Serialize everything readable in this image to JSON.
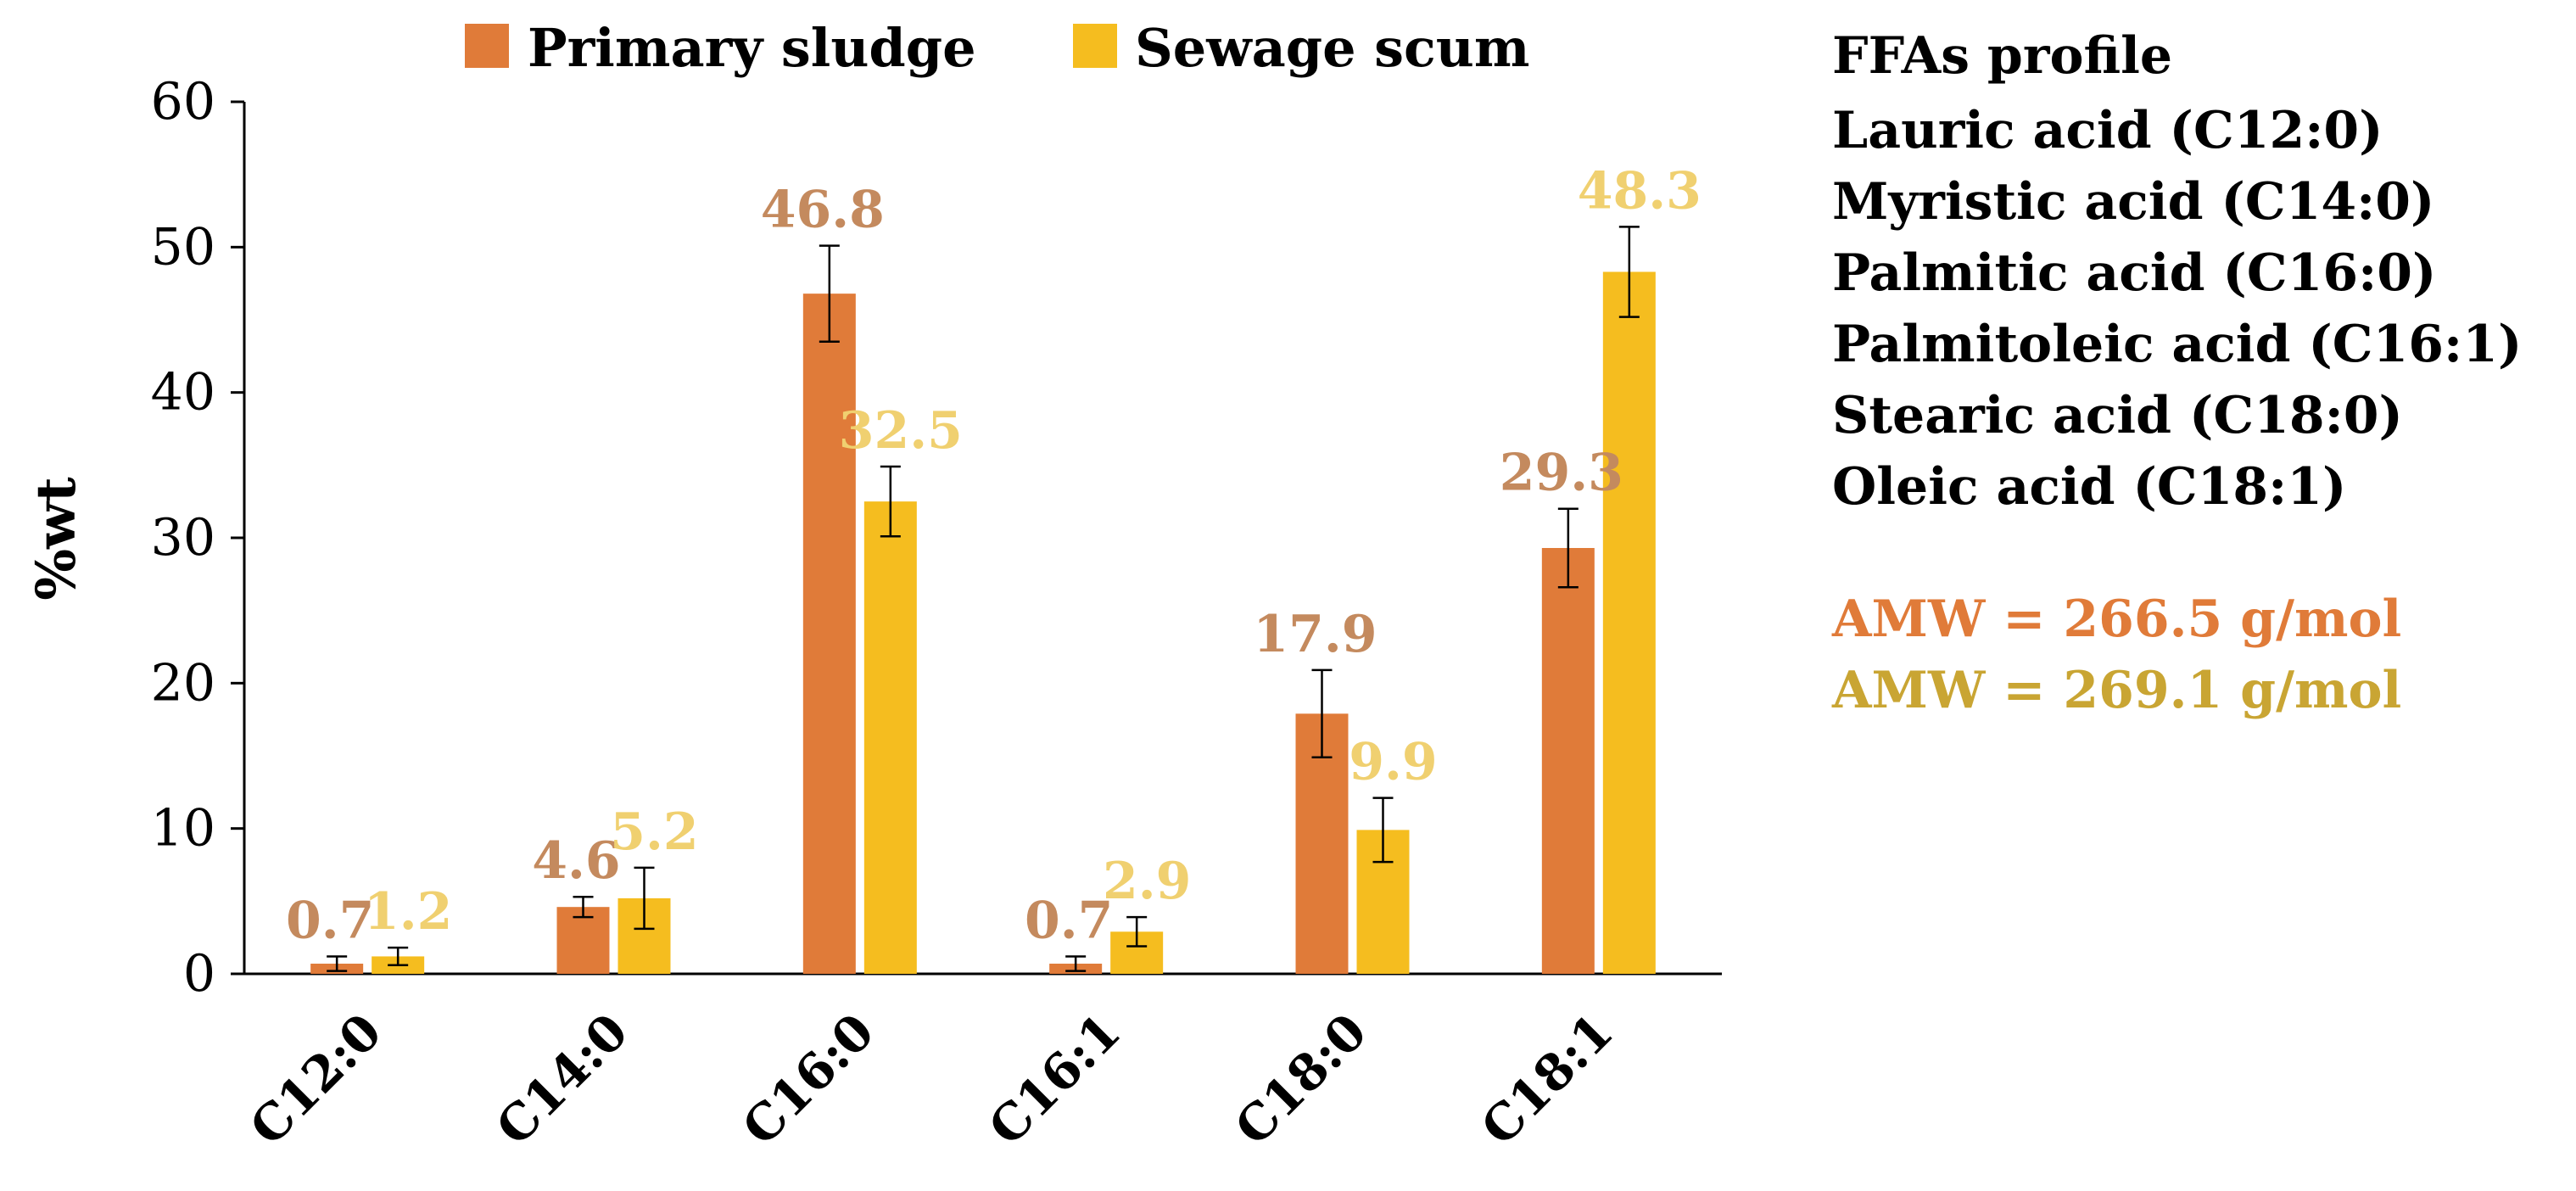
{
  "chart_data": {
    "type": "bar",
    "categories": [
      "C12:0",
      "C14:0",
      "C16:0",
      "C16:1",
      "C18:0",
      "C18:1"
    ],
    "series": [
      {
        "name": "Primary sludge",
        "color": "#E07B39",
        "label_color": "#C48A5E",
        "values": [
          0.7,
          4.6,
          46.8,
          0.7,
          17.9,
          29.3
        ],
        "error": [
          0.5,
          0.7,
          3.3,
          0.5,
          3.0,
          2.7
        ]
      },
      {
        "name": "Sewage scum",
        "color": "#F5BD1F",
        "label_color": "#F0D070",
        "values": [
          1.2,
          5.2,
          32.5,
          2.9,
          9.9,
          48.3
        ],
        "error": [
          0.6,
          2.1,
          2.4,
          1.0,
          2.2,
          3.1
        ]
      }
    ],
    "value_labels": {
      "series_0": [
        "0.7",
        "4.6",
        "46.8",
        "0.7",
        "17.9",
        "29.3"
      ],
      "series_1": [
        "1.2",
        "5.2",
        "32.5",
        "2.9",
        "9.9",
        "48.3"
      ]
    },
    "ylabel": "%wt",
    "ylim": [
      0,
      60
    ],
    "yticks": [
      0,
      10,
      20,
      30,
      40,
      50,
      60
    ],
    "ytick_labels": [
      "0",
      "10",
      "20",
      "30",
      "40",
      "50",
      "60"
    ],
    "grid": false,
    "legend": "top"
  },
  "side_panel": {
    "title": "FFAs profile",
    "acids": [
      "Lauric acid (C12:0)",
      "Myristic acid (C14:0)",
      "Palmitic acid (C16:0)",
      "Palmitoleic acid (C16:1)",
      "Stearic acid (C18:0)",
      "Oleic acid (C18:1)"
    ],
    "amw_primary": "AMW = 266.5 g/mol",
    "amw_scum": "AMW = 269.1 g/mol",
    "amw_primary_color": "#E07B39",
    "amw_scum_color": "#C9A533"
  }
}
